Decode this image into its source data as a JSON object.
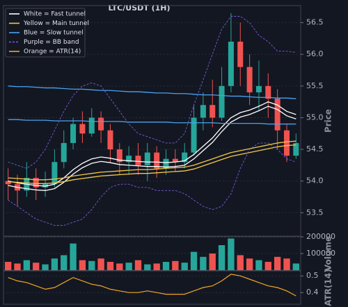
{
  "chart_data": [
    {
      "type": "candlestick",
      "title": "LTC/USDT (1H)",
      "y_label": "Price",
      "open": [
        54.0,
        53.95,
        53.85,
        54.05,
        53.9,
        53.95,
        54.3,
        54.6,
        54.9,
        54.75,
        55.0,
        54.8,
        54.5,
        54.3,
        54.4,
        54.25,
        54.45,
        54.2,
        54.35,
        54.3,
        54.45,
        55.0,
        55.2,
        55.0,
        55.5,
        56.2,
        55.8,
        55.4,
        55.5,
        55.3,
        54.8,
        54.4
      ],
      "high": [
        54.2,
        54.1,
        54.3,
        54.2,
        54.15,
        54.5,
        54.8,
        55.0,
        55.1,
        55.15,
        55.1,
        54.9,
        54.6,
        54.55,
        54.6,
        54.6,
        54.55,
        54.5,
        54.5,
        54.6,
        55.2,
        55.4,
        55.6,
        55.8,
        56.65,
        56.5,
        56.0,
        55.9,
        55.7,
        55.45,
        54.9,
        54.75
      ],
      "low": [
        53.7,
        53.6,
        53.75,
        53.7,
        53.75,
        53.9,
        54.2,
        54.5,
        54.6,
        54.7,
        54.6,
        54.3,
        54.1,
        54.1,
        54.1,
        54.0,
        54.05,
        54.1,
        54.15,
        54.2,
        54.4,
        54.8,
        54.85,
        54.95,
        55.4,
        55.5,
        55.2,
        55.1,
        55.0,
        54.5,
        54.3,
        54.35
      ],
      "close": [
        53.95,
        53.85,
        54.05,
        53.9,
        53.95,
        54.3,
        54.6,
        54.9,
        54.75,
        55.0,
        54.8,
        54.5,
        54.3,
        54.4,
        54.25,
        54.45,
        54.2,
        54.35,
        54.3,
        54.45,
        55.0,
        55.2,
        55.0,
        55.5,
        56.2,
        55.8,
        55.4,
        55.5,
        55.3,
        54.8,
        54.4,
        54.6
      ],
      "up_color": "#26a69a",
      "down_color": "#ef5350",
      "lines": [
        {
          "color": "#ffffff",
          "dash": false,
          "values": [
            54.0,
            53.97,
            53.95,
            53.93,
            53.92,
            53.95,
            54.05,
            54.18,
            54.28,
            54.35,
            54.38,
            54.36,
            54.33,
            54.32,
            54.31,
            54.3,
            54.3,
            54.29,
            54.3,
            54.32,
            54.42,
            54.55,
            54.68,
            54.85,
            55.0,
            55.08,
            55.12,
            55.18,
            55.25,
            55.2,
            55.1,
            55.05
          ]
        },
        {
          "color": "#ffffff",
          "dash": false,
          "values": [
            53.93,
            53.9,
            53.88,
            53.86,
            53.85,
            53.88,
            53.98,
            54.11,
            54.21,
            54.28,
            54.31,
            54.29,
            54.26,
            54.25,
            54.24,
            54.23,
            54.23,
            54.22,
            54.23,
            54.25,
            54.35,
            54.48,
            54.61,
            54.78,
            54.93,
            55.01,
            55.05,
            55.11,
            55.18,
            55.13,
            55.03,
            54.98
          ]
        },
        {
          "color": "#f7c948",
          "dash": false,
          "values": [
            54.05,
            54.04,
            54.03,
            54.02,
            54.02,
            54.03,
            54.05,
            54.08,
            54.1,
            54.12,
            54.14,
            54.15,
            54.16,
            54.17,
            54.18,
            54.18,
            54.19,
            54.2,
            54.21,
            54.22,
            54.25,
            54.3,
            54.35,
            54.4,
            54.45,
            54.48,
            54.51,
            54.54,
            54.57,
            54.6,
            54.62,
            54.63
          ]
        },
        {
          "color": "#f7c948",
          "dash": false,
          "values": [
            53.99,
            53.98,
            53.97,
            53.96,
            53.96,
            53.97,
            53.99,
            54.02,
            54.04,
            54.06,
            54.08,
            54.09,
            54.1,
            54.11,
            54.12,
            54.12,
            54.13,
            54.14,
            54.15,
            54.16,
            54.19,
            54.24,
            54.29,
            54.34,
            54.39,
            54.42,
            54.45,
            54.48,
            54.51,
            54.54,
            54.56,
            54.57
          ]
        },
        {
          "color": "#4aa3f0",
          "dash": false,
          "values": [
            55.5,
            55.49,
            55.49,
            55.48,
            55.47,
            55.47,
            55.46,
            55.45,
            55.45,
            55.44,
            55.43,
            55.43,
            55.42,
            55.41,
            55.41,
            55.4,
            55.39,
            55.39,
            55.38,
            55.38,
            55.37,
            55.36,
            55.36,
            55.35,
            55.34,
            55.34,
            55.33,
            55.32,
            55.32,
            55.31,
            55.31,
            55.3
          ]
        },
        {
          "color": "#4aa3f0",
          "dash": false,
          "values": [
            54.97,
            54.97,
            54.96,
            54.96,
            54.96,
            54.95,
            54.95,
            54.95,
            54.95,
            54.94,
            54.94,
            54.94,
            54.94,
            54.93,
            54.93,
            54.93,
            54.93,
            54.93,
            54.92,
            54.92,
            54.92,
            54.92,
            54.92,
            54.91,
            54.91,
            54.91,
            54.91,
            54.91,
            54.9,
            54.9,
            54.9,
            54.9
          ]
        },
        {
          "color": "#7b5cd6",
          "dash": true,
          "values": [
            54.3,
            54.25,
            54.2,
            54.3,
            54.5,
            54.8,
            55.1,
            55.35,
            55.5,
            55.55,
            55.5,
            55.3,
            55.1,
            54.9,
            54.75,
            54.7,
            54.65,
            54.6,
            54.6,
            54.75,
            55.2,
            55.6,
            56.0,
            56.4,
            56.6,
            56.6,
            56.5,
            56.3,
            56.2,
            56.05,
            56.05,
            56.03
          ]
        },
        {
          "color": "#7b5cd6",
          "dash": true,
          "values": [
            53.7,
            53.6,
            53.5,
            53.4,
            53.35,
            53.3,
            53.3,
            53.35,
            53.4,
            53.55,
            53.75,
            53.9,
            53.95,
            53.95,
            53.9,
            53.9,
            53.85,
            53.85,
            53.85,
            53.8,
            53.7,
            53.6,
            53.55,
            53.6,
            53.8,
            54.2,
            54.5,
            54.6,
            54.6,
            54.5,
            54.35,
            54.3
          ]
        }
      ],
      "legend": [
        {
          "label": "White = Fast tunnel",
          "color": "#ffffff",
          "dash": false
        },
        {
          "label": "Yellow = Main tunnel",
          "color": "#f7c948",
          "dash": false
        },
        {
          "label": "Blue = Slow tunnel",
          "color": "#4aa3f0",
          "dash": false
        },
        {
          "label": "Purple = BB band",
          "color": "#7b5cd6",
          "dash": true
        },
        {
          "label": "Orange = ATR(14)",
          "color": "#f5a623",
          "dash": false
        }
      ],
      "ylim": [
        53.13,
        56.77
      ],
      "yticks": [
        53.5,
        {
          "value": 54.0,
          "label": "54.0"
        },
        54.5,
        {
          "value": 55.0,
          "label": "55.0"
        },
        55.5,
        {
          "value": 56.0,
          "label": "56.0"
        },
        56.5
      ],
      "grid": true
    },
    {
      "type": "volume",
      "y_label": "Volume",
      "values": [
        50000,
        40000,
        60000,
        45000,
        35000,
        70000,
        90000,
        160000,
        60000,
        55000,
        70000,
        50000,
        40000,
        45000,
        60000,
        35000,
        40000,
        50000,
        55000,
        45000,
        110000,
        80000,
        100000,
        150000,
        190000,
        90000,
        70000,
        60000,
        50000,
        80000,
        70000,
        40000
      ],
      "ylim": [
        0,
        200000
      ],
      "yticks": [
        100000,
        200000
      ],
      "grid": true
    },
    {
      "type": "line",
      "y_label": "ATR(14)",
      "color": "#f5a623",
      "values": [
        0.49,
        0.47,
        0.46,
        0.44,
        0.42,
        0.43,
        0.46,
        0.49,
        0.47,
        0.45,
        0.44,
        0.42,
        0.41,
        0.4,
        0.4,
        0.41,
        0.4,
        0.39,
        0.39,
        0.39,
        0.41,
        0.43,
        0.44,
        0.47,
        0.51,
        0.5,
        0.48,
        0.46,
        0.44,
        0.43,
        0.41,
        0.38
      ],
      "ylim": [
        0.33,
        0.53
      ],
      "yticks": [
        0.4,
        0.5
      ],
      "grid": true
    }
  ]
}
